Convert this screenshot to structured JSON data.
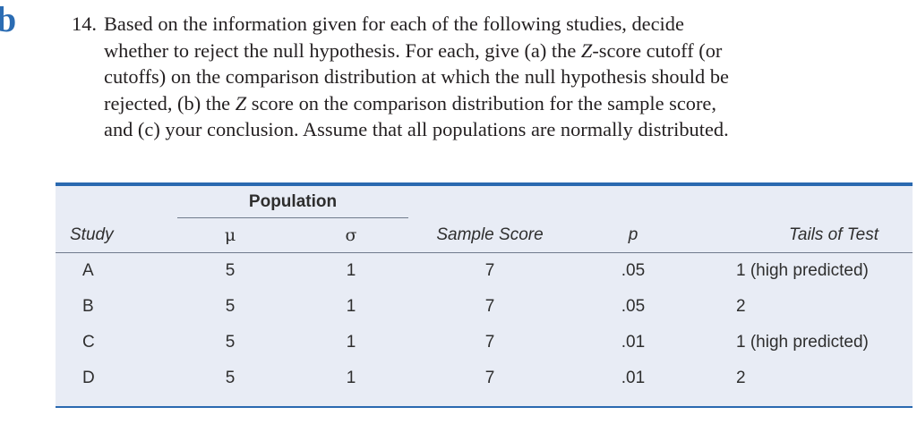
{
  "section_marker": "b",
  "question": {
    "number": "14.",
    "lines": [
      "Based on the information given for each of the following studies, decide",
      "whether to reject the null hypothesis. For each, give (a) the ",
      "cutoffs) on the comparison distribution at which the null hypothesis should be",
      "rejected, (b) the ",
      "and (c) your conclusion. Assume that all populations are normally distributed."
    ],
    "z_italic": "Z",
    "line2_tail": "-score cutoff (or",
    "line4_tail": " score on the comparison distribution for the sample score,"
  },
  "table": {
    "group_header": "Population",
    "columns": [
      "Study",
      "μ",
      "σ",
      "Sample Score",
      "p",
      "Tails of Test"
    ],
    "rows": [
      {
        "study": "A",
        "mu": "5",
        "sigma": "1",
        "sample": "7",
        "p": ".05",
        "tails": "1 (high predicted)"
      },
      {
        "study": "B",
        "mu": "5",
        "sigma": "1",
        "sample": "7",
        "p": ".05",
        "tails": "2"
      },
      {
        "study": "C",
        "mu": "5",
        "sigma": "1",
        "sample": "7",
        "p": ".01",
        "tails": "1 (high predicted)"
      },
      {
        "study": "D",
        "mu": "5",
        "sigma": "1",
        "sample": "7",
        "p": ".01",
        "tails": "2"
      }
    ],
    "accent_color": "#2a69b0",
    "background_color": "#e8ecf5"
  }
}
